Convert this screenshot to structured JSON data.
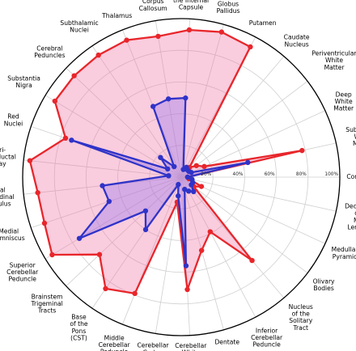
{
  "chart_data": {
    "type": "radar",
    "title": "",
    "radial_ticks": [
      20,
      40,
      60,
      80,
      100
    ],
    "radial_tick_labels": [
      "20%",
      "40%",
      "60%",
      "80%",
      "100%"
    ],
    "rlim": [
      0,
      100
    ],
    "grid": true,
    "legend": "none",
    "categories": [
      [
        "Cortex"
      ],
      [
        "Subcortical",
        "White",
        "Matter"
      ],
      [
        "Deep",
        "White",
        "Matter"
      ],
      [
        "Periventricular",
        "White",
        "Matter"
      ],
      [
        "Caudate",
        "Nucleus"
      ],
      [
        "Putamen"
      ],
      [
        "Globus",
        "Pallidus"
      ],
      [
        "Posterior",
        "Limb of",
        "the Internal",
        "Capsule"
      ],
      [
        "Corpus",
        "Callosum"
      ],
      [
        "Thalamus"
      ],
      [
        "Subthalamic",
        "Nuclei"
      ],
      [
        "Cerebral",
        "Peduncles"
      ],
      [
        "Substantia",
        "Nigra"
      ],
      [
        "Red",
        "Nuclei"
      ],
      [
        "Peri-",
        "aqueductal",
        "Gray"
      ],
      [
        "Medial",
        "Longitudinal",
        "Fasciculus"
      ],
      [
        "Medial",
        "Lemniscus"
      ],
      [
        "Superior",
        "Cerebellar",
        "Peduncle"
      ],
      [
        "Brainstem",
        "Trigeminal",
        "Tracts"
      ],
      [
        "Base",
        "of the",
        "Pons",
        "(CST)"
      ],
      [
        "Middle",
        "Cerebellar",
        "Peduncle"
      ],
      [
        "Cerebellar",
        "Cortex"
      ],
      [
        "Cerebellar",
        "White",
        "Matter"
      ],
      [
        "Dentate"
      ],
      [
        "Inferior",
        "Cerebellar",
        "Peduncle"
      ],
      [
        "Nucleus",
        "of the",
        "Solitary",
        "Tract"
      ],
      [
        "Olivary",
        "Bodies"
      ],
      [
        "Medullary",
        "Pyramids"
      ],
      [
        "Decussation",
        "of the",
        "Medial",
        "Lemniscus"
      ]
    ],
    "series": [
      {
        "color": "#e8262b",
        "fill": "#f07aa8",
        "fill_opacity": 0.38,
        "values": [
          4,
          78,
          16,
          12,
          8,
          93,
          95,
          93,
          90,
          93,
          93,
          93,
          93,
          77,
          96,
          91,
          91,
          95,
          71,
          85,
          79,
          16,
          71,
          48,
          39,
          69,
          10,
          14,
          5
        ]
      },
      {
        "color": "#2f33c8",
        "fill": "#8f6ef0",
        "fill_opacity": 0.35,
        "values": [
          4,
          43,
          7,
          6,
          6,
          7,
          5,
          50,
          50,
          48,
          8,
          18,
          10,
          73,
          8,
          50,
          48,
          75,
          31,
          40,
          5,
          12,
          56,
          8,
          10,
          12,
          8,
          8,
          7
        ]
      }
    ]
  }
}
